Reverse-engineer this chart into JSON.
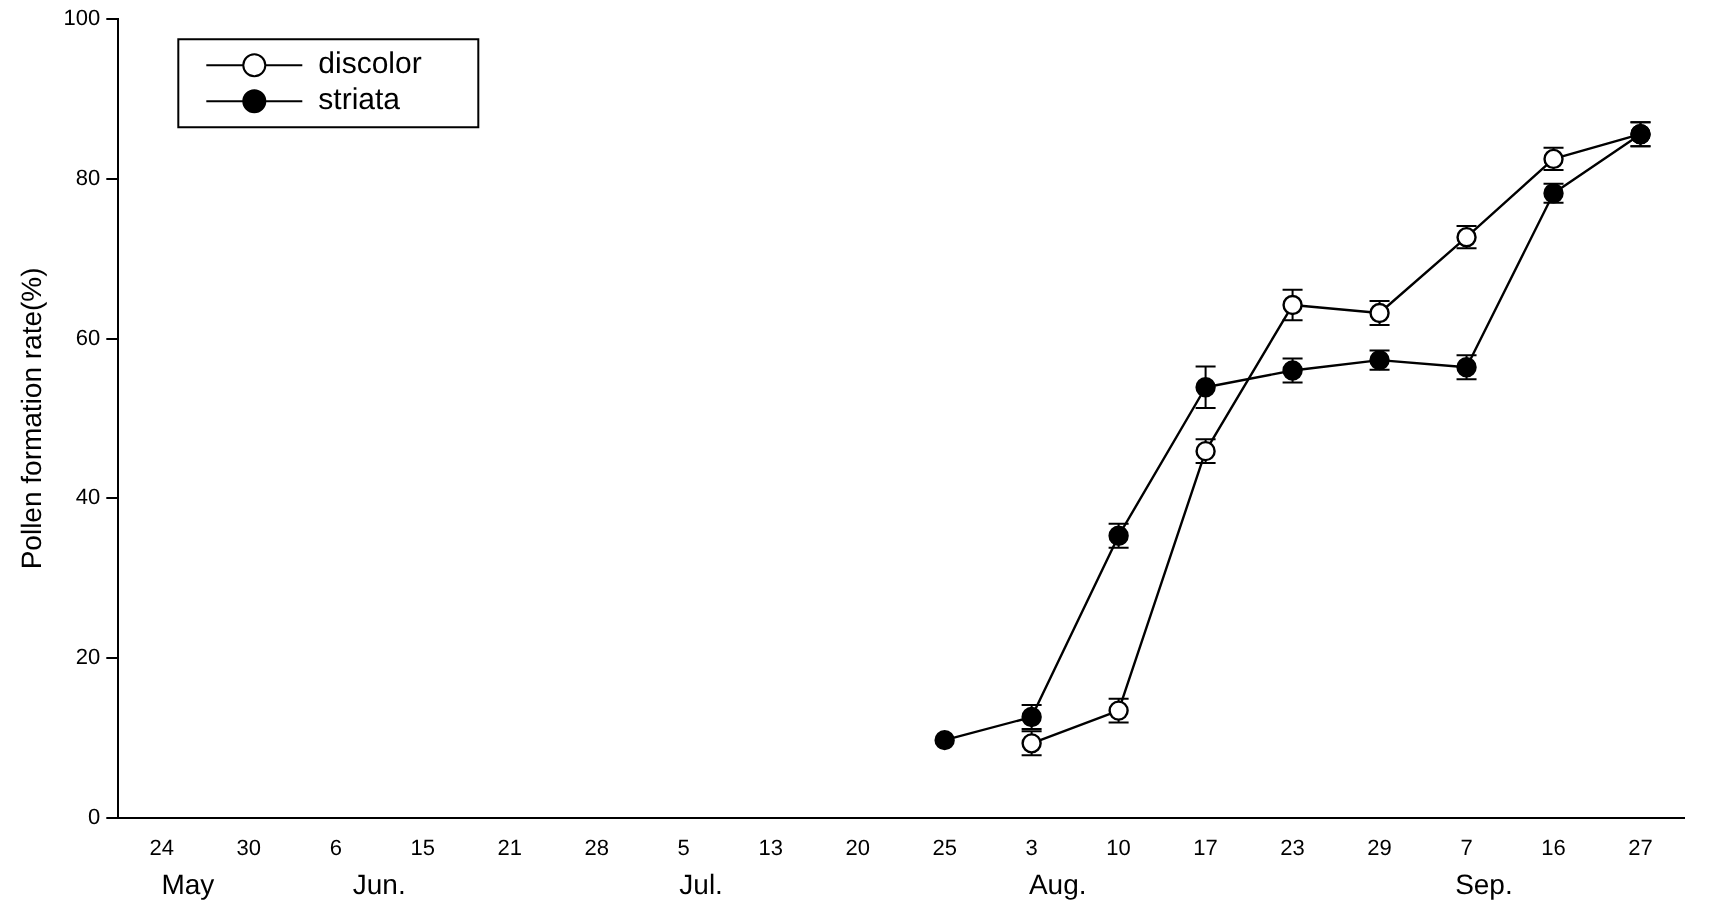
{
  "chart_data": {
    "type": "line",
    "ylabel": "Pollen formation rate(%)",
    "categories": [
      "24",
      "30",
      "6",
      "15",
      "21",
      "28",
      "5",
      "13",
      "20",
      "25",
      "3",
      "10",
      "17",
      "23",
      "29",
      "7",
      "16",
      "27"
    ],
    "series": [
      {
        "name": "discolor",
        "color": "#ffffff",
        "values": [
          null,
          null,
          null,
          null,
          null,
          null,
          null,
          null,
          null,
          null,
          9.3,
          13.4,
          45.9,
          64.2,
          63.2,
          72.7,
          82.5,
          85.6
        ],
        "errors": [
          null,
          null,
          null,
          null,
          null,
          null,
          null,
          null,
          null,
          null,
          1.5,
          1.5,
          1.5,
          1.9,
          1.5,
          1.4,
          1.4,
          1.5
        ]
      },
      {
        "name": "striata",
        "color": "#000000",
        "values": [
          null,
          null,
          null,
          null,
          null,
          null,
          null,
          null,
          null,
          9.7,
          12.6,
          35.3,
          53.9,
          56.0,
          57.3,
          56.4,
          78.2,
          85.6
        ],
        "errors": [
          null,
          null,
          null,
          null,
          null,
          null,
          null,
          null,
          null,
          null,
          1.5,
          1.5,
          2.6,
          1.5,
          1.2,
          1.5,
          1.2,
          1.5
        ]
      }
    ],
    "ylim": [
      0,
      100
    ],
    "yticks": [
      0,
      20,
      40,
      60,
      80,
      100
    ],
    "grid": false,
    "legend": "top left",
    "marker": "circle",
    "line_style": "solid",
    "annotations": [
      "May",
      "Jun.",
      "Jul.",
      "Aug.",
      "Sep."
    ]
  }
}
